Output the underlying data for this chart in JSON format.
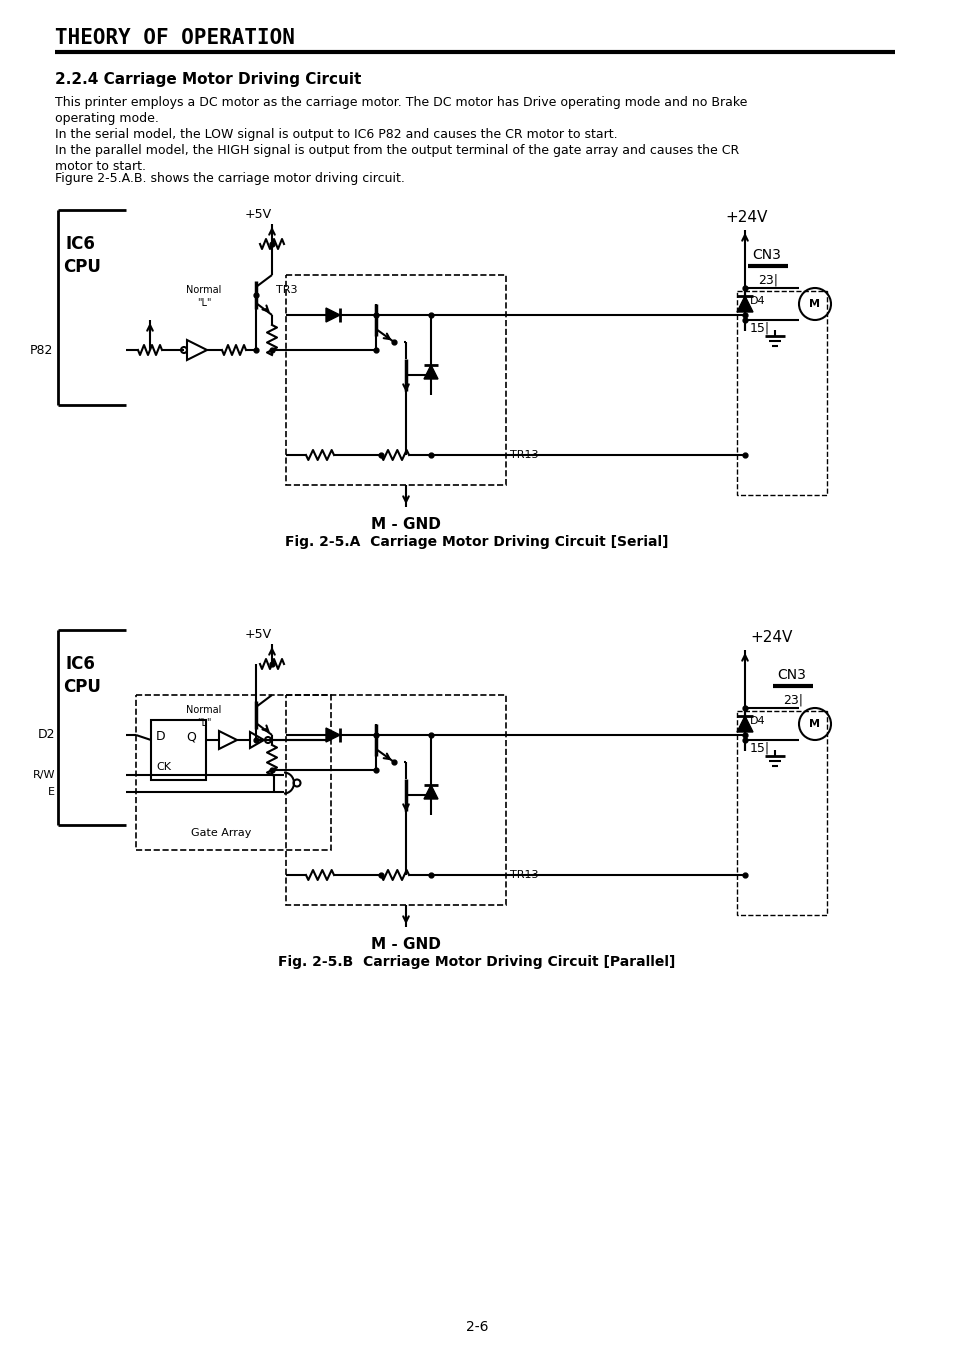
{
  "title": "THEORY OF OPERATION",
  "section": "2.2.4 Carriage Motor Driving Circuit",
  "body_text": [
    "This printer employs a DC motor as the carriage motor. The DC motor has Drive operating mode and no Brake",
    "operating mode.",
    "In the serial model, the LOW signal is output to IC6 P82 and causes the CR motor to start.",
    "In the parallel model, the HIGH signal is output from the output terminal of the gate array and causes the CR",
    "motor to start."
  ],
  "figure_text": "Figure 2-5.A.B. shows the carriage motor driving circuit.",
  "fig_a_caption": "Fig. 2-5.A  Carriage Motor Driving Circuit [Serial]",
  "fig_b_caption": "Fig. 2-5.B  Carriage Motor Driving Circuit [Parallel]",
  "page_number": "2-6",
  "bg_color": "#ffffff"
}
